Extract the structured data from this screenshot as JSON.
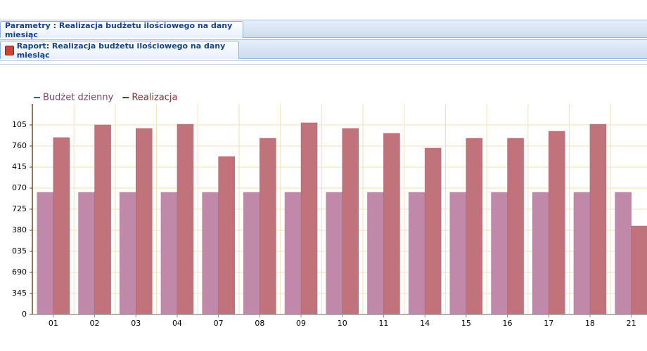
{
  "tabs": {
    "parameters": "Parametry : Realizacja budżetu ilościowego na dany miesiąc",
    "report": "Raport: Realizacja budżetu ilościowego na dany miesiąc"
  },
  "chart_data": {
    "type": "bar",
    "categories": [
      "01",
      "02",
      "03",
      "04",
      "07",
      "08",
      "09",
      "10",
      "11",
      "14",
      "15",
      "16",
      "17",
      "18",
      "21"
    ],
    "series": [
      {
        "name": "Budżet dzienny",
        "color": "#c189a9",
        "values": [
          19401,
          19401,
          19401,
          19401,
          19401,
          19401,
          19401,
          19401,
          19401,
          19401,
          19401,
          19401,
          19401,
          19401,
          19401
        ]
      },
      {
        "name": "Realizacja",
        "color": "#c0737a",
        "values": [
          28098,
          30105,
          29548,
          30216,
          25088,
          27986,
          30440,
          29548,
          28767,
          26426,
          27986,
          27986,
          29102,
          30216,
          14049
        ]
      }
    ],
    "ylim": [
      0,
      33450
    ],
    "yticks": [
      0,
      {
        "value": 3345,
        "label": "345"
      },
      {
        "value": 6690,
        "label": "690"
      },
      {
        "value": 10035,
        "label": "035"
      },
      {
        "value": 13380,
        "label": "380"
      },
      {
        "value": 16725,
        "label": "725"
      },
      {
        "value": 20070,
        "label": "070"
      },
      {
        "value": 23415,
        "label": "415"
      },
      {
        "value": 26760,
        "label": "760"
      },
      {
        "value": 30105,
        "label": "105"
      }
    ],
    "grid": true,
    "legend": "top-left"
  }
}
